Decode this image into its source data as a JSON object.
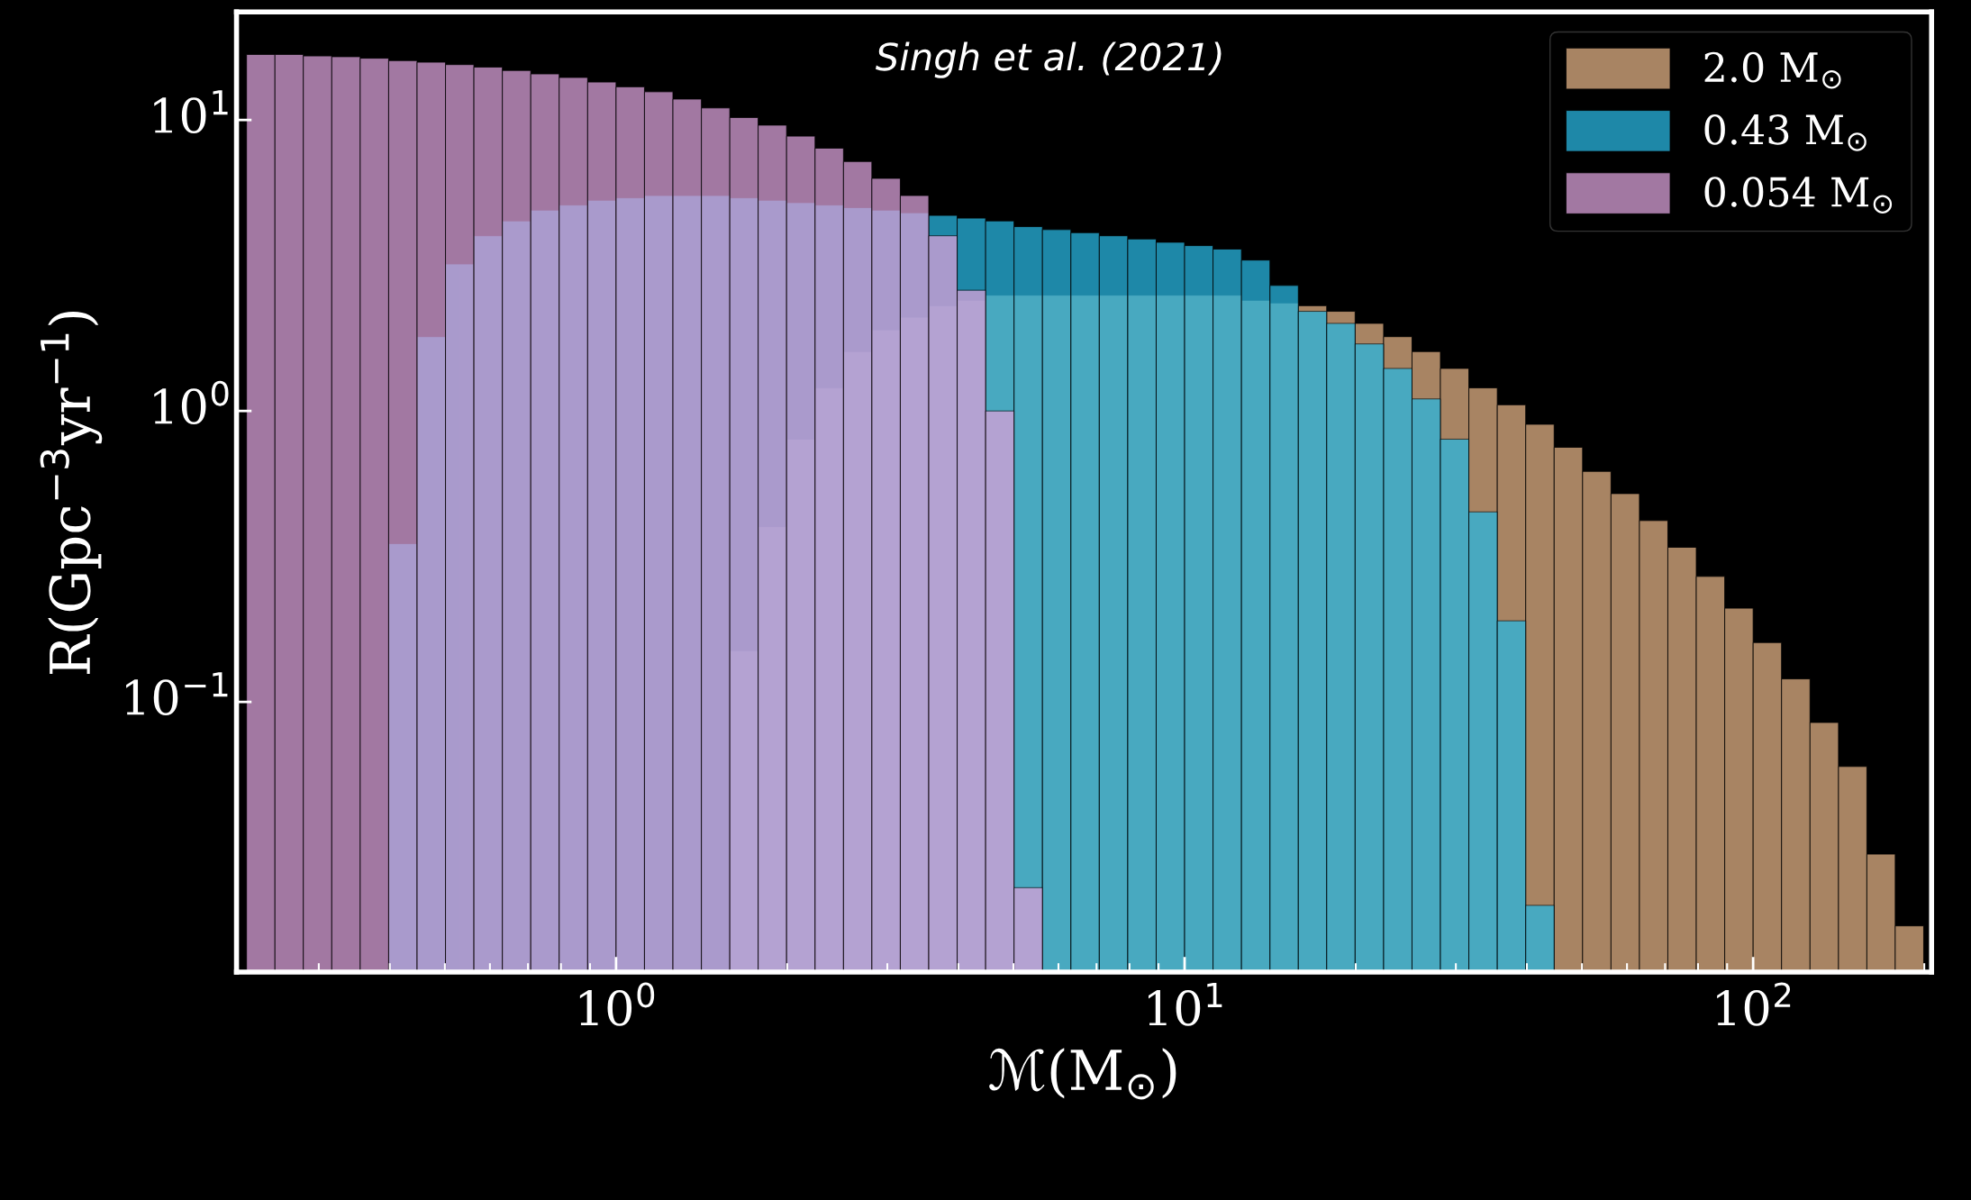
{
  "chart_data": {
    "type": "histogram",
    "xlabel": "ℳ(M$_{⊙}$)",
    "ylabel": "R(Gpc$^{−3}$yr$^{−1}$)",
    "annotations": [
      "Singh et al. (2021)"
    ],
    "log": "xy",
    "grid": false,
    "legend": "top right",
    "xlim": [
      0.215,
      206
    ],
    "ylim": [
      0.0118,
      23.5
    ],
    "xticks": [
      {
        "value": 1,
        "label": "10$^{0}$"
      },
      {
        "value": 10,
        "label": "10$^{1}$"
      },
      {
        "value": 100,
        "label": "10$^{2}$"
      }
    ],
    "yticks": [
      {
        "value": 0.1,
        "label": "10$^{−1}$"
      },
      {
        "value": 1,
        "label": "10$^{0}$"
      },
      {
        "value": 10,
        "label": "10$^{1}$"
      }
    ],
    "bins": [
      0.2239,
      0.2512,
      0.2818,
      0.3162,
      0.3548,
      0.3981,
      0.4467,
      0.5012,
      0.5623,
      0.631,
      0.7079,
      0.7943,
      0.8913,
      1.0,
      1.122,
      1.259,
      1.413,
      1.585,
      1.778,
      1.995,
      2.239,
      2.512,
      2.818,
      3.162,
      3.548,
      3.981,
      4.467,
      5.012,
      5.623,
      6.31,
      7.079,
      7.943,
      8.913,
      10.0,
      11.22,
      12.59,
      14.13,
      15.85,
      17.78,
      19.95,
      22.39,
      25.12,
      28.18,
      31.62,
      35.48,
      39.81,
      44.67,
      50.12,
      56.23,
      63.1,
      70.79,
      79.43,
      89.13,
      100.0,
      112.2,
      125.9,
      141.3,
      158.5,
      177.8,
      199.5
    ],
    "series": [
      {
        "name": "2.0 M$_{⊙}$",
        "color": "#e0b084",
        "values": [
          null,
          null,
          null,
          null,
          null,
          null,
          null,
          null,
          null,
          null,
          null,
          null,
          null,
          null,
          null,
          null,
          null,
          0.15,
          0.4,
          0.8,
          1.2,
          1.6,
          1.9,
          2.1,
          2.3,
          2.4,
          2.5,
          2.5,
          2.5,
          2.5,
          2.5,
          2.5,
          2.5,
          2.5,
          2.5,
          2.4,
          2.35,
          2.3,
          2.2,
          2.0,
          1.8,
          1.6,
          1.4,
          1.2,
          1.05,
          0.9,
          0.75,
          0.62,
          0.52,
          0.42,
          0.34,
          0.27,
          0.21,
          0.16,
          0.12,
          0.085,
          0.06,
          0.03,
          0.017
        ]
      },
      {
        "name": "0.43 M$_{⊙}$",
        "color": "#29b6e0",
        "values": [
          null,
          null,
          null,
          null,
          null,
          0.35,
          1.8,
          3.2,
          4.0,
          4.5,
          4.9,
          5.1,
          5.3,
          5.4,
          5.5,
          5.5,
          5.5,
          5.4,
          5.3,
          5.2,
          5.1,
          5.0,
          4.9,
          4.8,
          4.7,
          4.6,
          4.5,
          4.3,
          4.2,
          4.1,
          4.0,
          3.9,
          3.8,
          3.7,
          3.6,
          3.3,
          2.7,
          2.2,
          2.0,
          1.7,
          1.4,
          1.1,
          0.8,
          0.45,
          0.19,
          0.02,
          null,
          null,
          null,
          null,
          null,
          null,
          null,
          null,
          null,
          null,
          null,
          null,
          null
        ]
      },
      {
        "name": "0.054 M$_{⊙}$",
        "color": "#d9a0d9",
        "values": [
          16.8,
          16.8,
          16.6,
          16.5,
          16.3,
          16.0,
          15.8,
          15.5,
          15.2,
          14.8,
          14.4,
          14.0,
          13.5,
          13.0,
          12.5,
          11.8,
          11.0,
          10.2,
          9.6,
          8.8,
          8.0,
          7.2,
          6.3,
          5.5,
          4.0,
          2.6,
          1.0,
          0.023,
          null,
          null,
          null,
          null,
          null,
          null,
          null,
          null,
          null,
          null,
          null,
          null,
          null,
          null,
          null,
          null,
          null,
          null,
          null,
          null,
          null,
          null,
          null,
          null,
          null,
          null,
          null,
          null,
          null,
          null,
          null
        ]
      }
    ]
  }
}
